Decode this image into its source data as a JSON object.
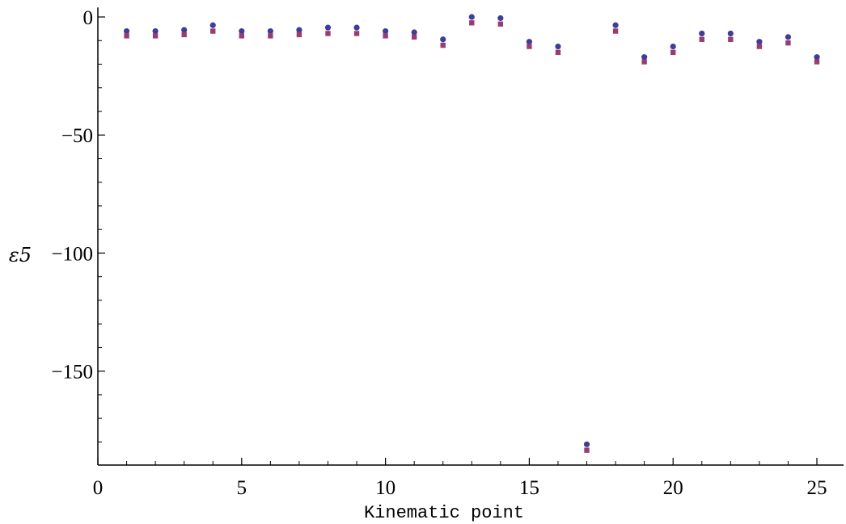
{
  "chart_data": {
    "type": "scatter",
    "title": "",
    "xlabel": "Kinematic point",
    "ylabel": "ε5",
    "xlim": [
      0,
      26
    ],
    "ylim": [
      -190,
      4
    ],
    "x_ticks": [
      0,
      5,
      10,
      15,
      20,
      25
    ],
    "y_ticks": [
      0,
      -50,
      -100,
      -150
    ],
    "x_tick_labels": [
      "0",
      "5",
      "10",
      "15",
      "20",
      "25"
    ],
    "y_tick_labels": [
      "0",
      "−50",
      "−100",
      "−150"
    ],
    "grid": false,
    "legend": "none",
    "x": [
      1,
      2,
      3,
      4,
      5,
      6,
      7,
      8,
      9,
      10,
      11,
      12,
      13,
      14,
      15,
      16,
      17,
      18,
      19,
      20,
      21,
      22,
      23,
      24,
      25
    ],
    "series": [
      {
        "marker": "circle",
        "color": "#3f3d99",
        "values": [
          -6,
          -6,
          -5.5,
          -3.5,
          -6,
          -6,
          -5.5,
          -4.5,
          -4.5,
          -6,
          -6.5,
          -9.5,
          0,
          -0.5,
          -10.5,
          -12.5,
          -181,
          -3.5,
          -17,
          -12.5,
          -7,
          -7,
          -10.5,
          -8.5,
          -17
        ]
      },
      {
        "marker": "square",
        "color": "#993d71",
        "values": [
          -8,
          -8,
          -7.5,
          -6,
          -8,
          -8,
          -7.5,
          -7,
          -7,
          -8,
          -8.5,
          -12,
          -2.5,
          -3,
          -12.5,
          -15,
          -183.5,
          -6,
          -19,
          -15,
          -9.5,
          -9.5,
          -12.5,
          -11,
          -19
        ]
      }
    ]
  }
}
